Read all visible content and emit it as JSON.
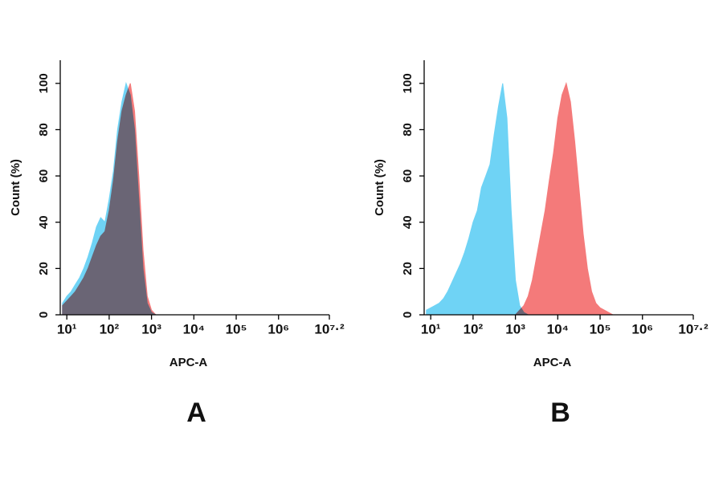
{
  "chart_data": [
    {
      "type": "area",
      "panel_label": "A",
      "xlabel": "APC-A",
      "ylabel": "Count  (%)",
      "log_x": true,
      "xlim": [
        7,
        15848932
      ],
      "ylim": [
        0,
        110
      ],
      "xticks": [
        {
          "value": 10,
          "label": "10¹"
        },
        {
          "value": 100,
          "label": "10²"
        },
        {
          "value": 1000,
          "label": "10³"
        },
        {
          "value": 10000,
          "label": "10⁴"
        },
        {
          "value": 100000,
          "label": "10⁵"
        },
        {
          "value": 1000000,
          "label": "10⁶"
        },
        {
          "value": 15848932,
          "label": "10⁷·²"
        }
      ],
      "yticks": [
        0,
        20,
        40,
        60,
        80,
        100
      ],
      "x": [
        7.9,
        10,
        12.6,
        15.8,
        20,
        25.1,
        31.6,
        39.8,
        50.1,
        63.1,
        79.4,
        100,
        126,
        158,
        200,
        251,
        316,
        398,
        501,
        631,
        794,
        1000,
        1259,
        1585,
        1995,
        2512,
        3162,
        3981,
        5012,
        6310,
        7943,
        10000,
        12589,
        15849,
        19953,
        25119,
        31623,
        39811,
        50119,
        63096,
        79433,
        100000,
        125893,
        158489,
        199526,
        251189,
        316228
      ],
      "series": [
        {
          "color": "#f47a7a",
          "values": [
            4,
            6,
            8,
            10,
            13,
            16,
            20,
            25,
            30,
            34,
            36,
            45,
            58,
            75,
            88,
            95,
            100,
            88,
            60,
            28,
            8,
            2,
            0,
            0,
            0,
            0,
            0,
            0,
            0,
            0,
            0,
            0,
            0,
            0,
            0,
            0,
            0,
            0,
            0,
            0,
            0,
            0,
            0,
            0,
            0,
            0,
            0
          ]
        },
        {
          "color": "#6fd3f5",
          "values": [
            5,
            8,
            10,
            13,
            16,
            20,
            25,
            31,
            38,
            42,
            40,
            50,
            62,
            80,
            92,
            100,
            95,
            80,
            50,
            20,
            5,
            1,
            0,
            0,
            0,
            0,
            0,
            0,
            0,
            0,
            0,
            0,
            0,
            0,
            0,
            0,
            0,
            0,
            0,
            0,
            0,
            0,
            0,
            0,
            0,
            0,
            0
          ]
        }
      ]
    },
    {
      "type": "area",
      "panel_label": "B",
      "xlabel": "APC-A",
      "ylabel": "Count  (%)",
      "log_x": true,
      "xlim": [
        7,
        15848932
      ],
      "ylim": [
        0,
        110
      ],
      "xticks": [
        {
          "value": 10,
          "label": "10¹"
        },
        {
          "value": 100,
          "label": "10²"
        },
        {
          "value": 1000,
          "label": "10³"
        },
        {
          "value": 10000,
          "label": "10⁴"
        },
        {
          "value": 100000,
          "label": "10⁵"
        },
        {
          "value": 1000000,
          "label": "10⁶"
        },
        {
          "value": 15848932,
          "label": "10⁷·²"
        }
      ],
      "yticks": [
        0,
        20,
        40,
        60,
        80,
        100
      ],
      "x": [
        7.9,
        10,
        12.6,
        15.8,
        20,
        25.1,
        31.6,
        39.8,
        50.1,
        63.1,
        79.4,
        100,
        126,
        158,
        200,
        251,
        316,
        398,
        501,
        631,
        794,
        1000,
        1259,
        1585,
        1995,
        2512,
        3162,
        3981,
        5012,
        6310,
        7943,
        10000,
        12589,
        15849,
        19953,
        25119,
        31623,
        39811,
        50119,
        63096,
        79433,
        100000,
        125893,
        158489,
        199526,
        251189,
        316228
      ],
      "series": [
        {
          "color": "#6fd3f5",
          "values": [
            2,
            3,
            4,
            5,
            7,
            10,
            14,
            18,
            22,
            27,
            33,
            40,
            45,
            55,
            60,
            65,
            78,
            90,
            100,
            85,
            45,
            15,
            4,
            1,
            0,
            0,
            0,
            0,
            0,
            0,
            0,
            0,
            0,
            0,
            0,
            0,
            0,
            0,
            0,
            0,
            0,
            0,
            0,
            0,
            0,
            0,
            0
          ]
        },
        {
          "color": "#f47a7a",
          "values": [
            0,
            0,
            0,
            0,
            0,
            0,
            0,
            0,
            0,
            0,
            0,
            0,
            0,
            0,
            0,
            0,
            0,
            0,
            0,
            0,
            0,
            0,
            2,
            4,
            8,
            15,
            25,
            35,
            45,
            58,
            70,
            85,
            95,
            100,
            92,
            75,
            55,
            35,
            20,
            10,
            5,
            3,
            2,
            1,
            0,
            0,
            0
          ]
        }
      ]
    }
  ]
}
